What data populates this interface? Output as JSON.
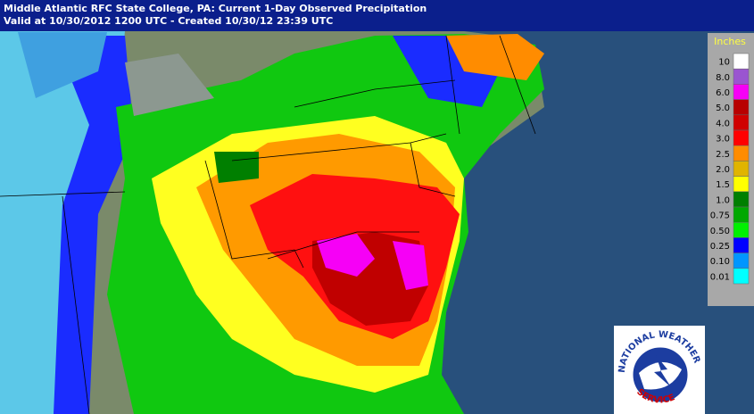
{
  "header": {
    "title": "Middle Atlantic RFC State College, PA: Current 1-Day Observed Precipitation",
    "subtitle": "Valid at 10/30/2012 1200 UTC - Created 10/30/12 23:39 UTC"
  },
  "legend": {
    "title": "Inches",
    "entries": [
      {
        "label": "10",
        "color": "#ffffff"
      },
      {
        "label": "8.0",
        "color": "#9a55d0"
      },
      {
        "label": "6.0",
        "color": "#f600f6"
      },
      {
        "label": "5.0",
        "color": "#b80000"
      },
      {
        "label": "4.0",
        "color": "#d00000"
      },
      {
        "label": "3.0",
        "color": "#ff0000"
      },
      {
        "label": "2.5",
        "color": "#ff8c00"
      },
      {
        "label": "2.0",
        "color": "#e0b400"
      },
      {
        "label": "1.5",
        "color": "#ffff00"
      },
      {
        "label": "1.0",
        "color": "#007f00"
      },
      {
        "label": "0.75",
        "color": "#00a800"
      },
      {
        "label": "0.50",
        "color": "#00f000"
      },
      {
        "label": "0.25",
        "color": "#0000ff"
      },
      {
        "label": "0.10",
        "color": "#0096ff"
      },
      {
        "label": "0.01",
        "color": "#00ffff"
      }
    ]
  },
  "logo": {
    "top": "NATIONAL WEATHER",
    "bottom": "SERVICE"
  }
}
